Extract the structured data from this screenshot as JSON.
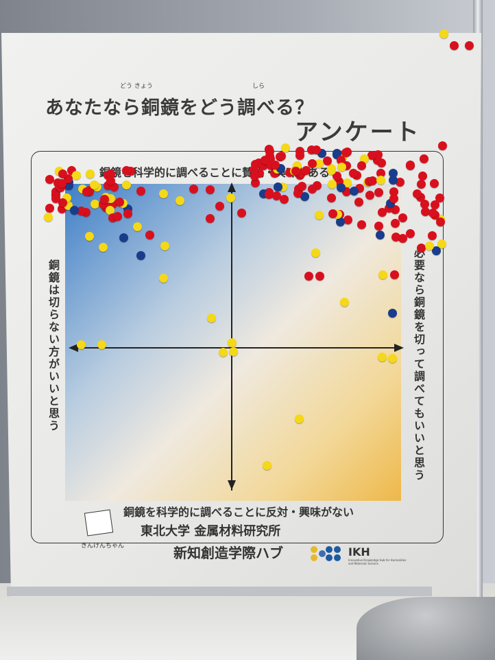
{
  "poster": {
    "title": "あなたなら銅鏡をどう調べる？",
    "title_ruby": [
      "どう きょう",
      "しら"
    ],
    "subtitle": "アンケート",
    "axis_top": "銅鏡を科学的に調べることに賛成・興味がある",
    "axis_bottom": "銅鏡を科学的に調べることに反対・興味がない",
    "axis_left": "銅鏡は切らない方がいいと思う",
    "axis_right": "必要なら銅鏡を切って調べてもいいと思う",
    "mascot_name": "きんけんちゃん",
    "institution_line1": "東北大学 金属材料研究所",
    "institution_line2": "新知創造学際ハブ",
    "logo_text": "IKH",
    "logo_subtext": "Innovative Knowledge Hub for Humanities and Materials Science"
  },
  "colors": {
    "sticker_red": "#d8101e",
    "sticker_yellow": "#f5d817",
    "sticker_blue": "#1a3c8c",
    "gradient_blue": "#3f7fc8",
    "gradient_orange": "#eeb84a"
  }
}
